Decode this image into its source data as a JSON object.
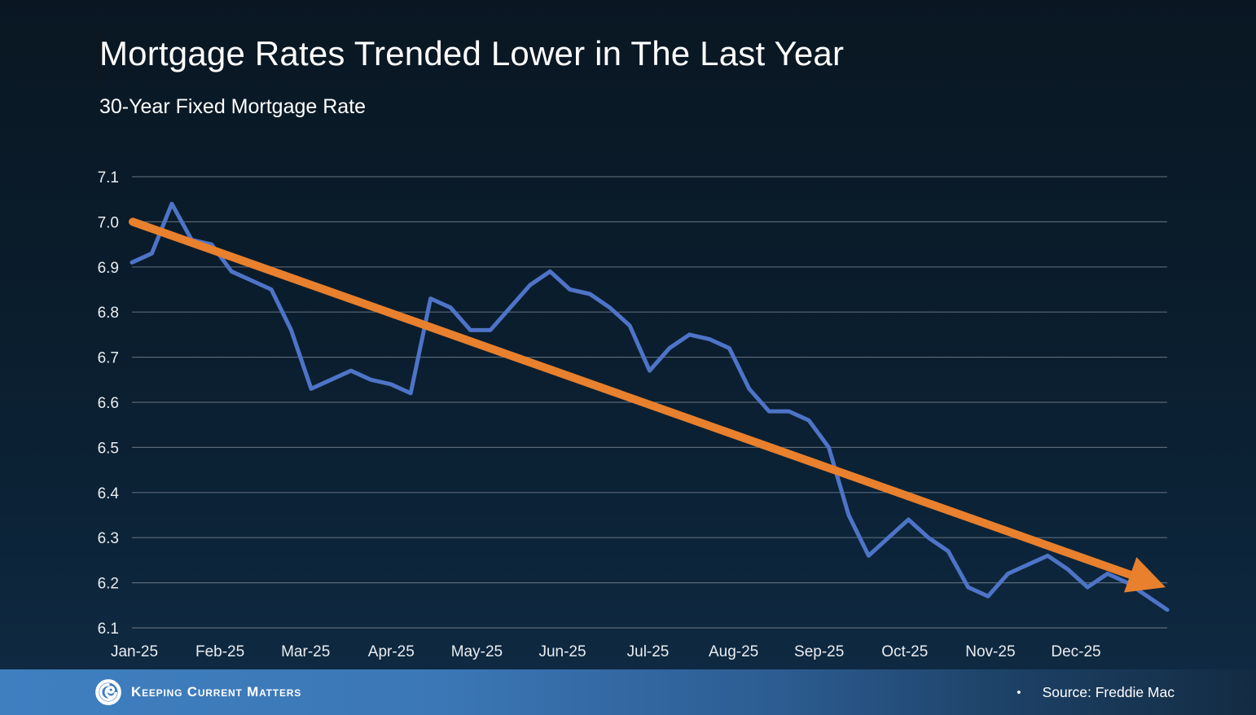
{
  "slide": {
    "title": "Mortgage Rates Trended Lower in The Last Year",
    "subtitle": "30-Year Fixed Mortgage Rate"
  },
  "chart_data": {
    "type": "line",
    "title": "30-Year Fixed Mortgage Rate",
    "x_tick_labels": [
      "Jan-25",
      "Feb-25",
      "Mar-25",
      "Apr-25",
      "May-25",
      "Jun-25",
      "Jul-25",
      "Aug-25",
      "Sep-25",
      "Oct-25",
      "Nov-25",
      "Dec-25"
    ],
    "y_tick_labels": [
      "7.1",
      "7.0",
      "6.9",
      "6.8",
      "6.7",
      "6.6",
      "6.5",
      "6.4",
      "6.3",
      "6.2",
      "6.1"
    ],
    "ylim": [
      6.1,
      7.1
    ],
    "grid": true,
    "legend": "none",
    "series": [
      {
        "name": "30-Year Fixed Mortgage Rate (weekly)",
        "color": "#4E74C8",
        "weekly_values": [
          6.91,
          6.93,
          7.04,
          6.96,
          6.95,
          6.89,
          6.87,
          6.85,
          6.76,
          6.63,
          6.65,
          6.67,
          6.65,
          6.64,
          6.62,
          6.83,
          6.81,
          6.76,
          6.76,
          6.81,
          6.86,
          6.89,
          6.85,
          6.84,
          6.81,
          6.77,
          6.67,
          6.72,
          6.75,
          6.74,
          6.72,
          6.63,
          6.58,
          6.58,
          6.56,
          6.5,
          6.35,
          6.26,
          6.3,
          6.34,
          6.3,
          6.27,
          6.19,
          6.17,
          6.22,
          6.24,
          6.26,
          6.23,
          6.19,
          6.22,
          6.2,
          6.17,
          6.14
        ]
      }
    ],
    "trend_arrow": {
      "name": "downward trend arrow",
      "color": "#E8802D",
      "start_value": 7.0,
      "end_value": 6.19
    },
    "gridline_color": "#8a949e",
    "axis_label_color": "#e9edf0"
  },
  "footer": {
    "brand": "Keeping Current Matters",
    "bullet": "•",
    "source": "Source: Freddie Mac"
  }
}
